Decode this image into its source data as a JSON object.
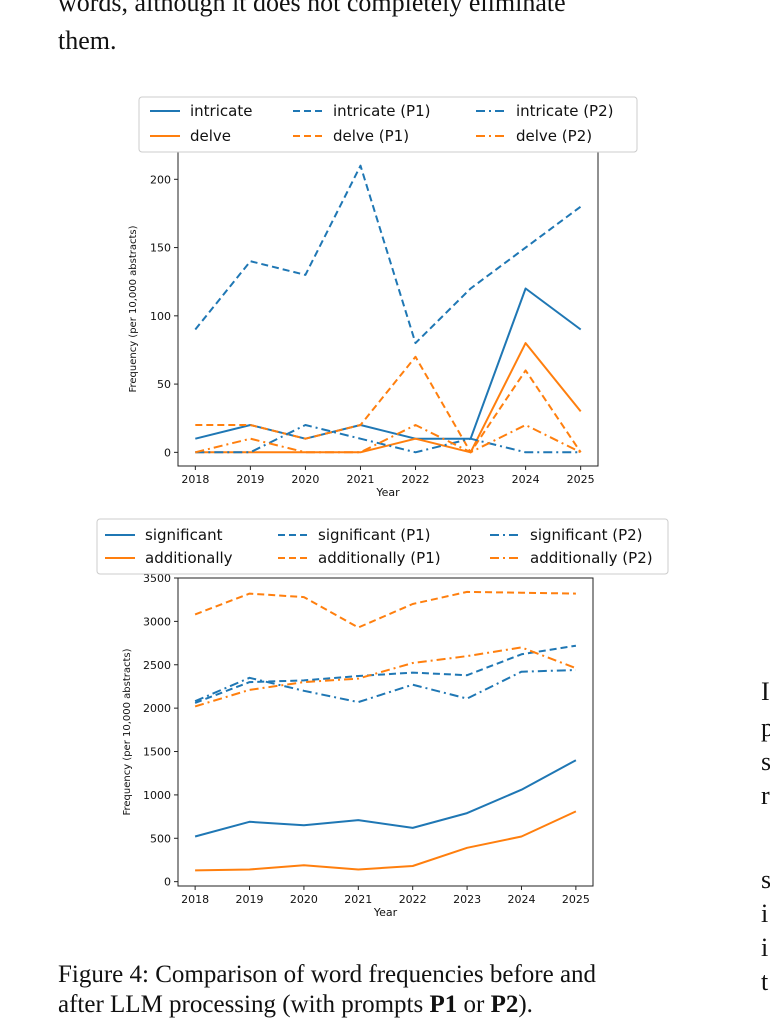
{
  "page": {
    "top_text_line1": "words, although it does not completely eliminate",
    "top_text_line2": "them.",
    "caption_before": "Figure 4: Comparison of word frequencies before and",
    "caption_line2_prefix": "after LLM processing (with prompts ",
    "caption_p1": "P1",
    "caption_or": " or ",
    "caption_p2": "P2",
    "caption_suffix": ").",
    "right_col": [
      "I",
      "p",
      "s",
      "r",
      "",
      "s",
      "i",
      "i",
      "t"
    ]
  },
  "colors": {
    "blue": "#1f77b4",
    "orange": "#ff7f0e"
  },
  "chart_data": [
    {
      "type": "line",
      "x": [
        2018,
        2019,
        2020,
        2021,
        2022,
        2023,
        2024,
        2025
      ],
      "ylabel": "Frequency (per 10,000 abstracts)",
      "xlabel": "Year",
      "ylim": [
        -10,
        220
      ],
      "yticks": [
        0,
        50,
        100,
        150,
        200
      ],
      "legend_position": "top",
      "series": [
        {
          "name": "intricate",
          "color": "blue",
          "style": "solid",
          "values": [
            10,
            20,
            10,
            20,
            10,
            10,
            120,
            90
          ]
        },
        {
          "name": "delve",
          "color": "orange",
          "style": "solid",
          "values": [
            0,
            0,
            0,
            0,
            10,
            0,
            80,
            30
          ]
        },
        {
          "name": "intricate (P1)",
          "color": "blue",
          "style": "dashed",
          "values": [
            90,
            140,
            130,
            210,
            80,
            120,
            150,
            180
          ]
        },
        {
          "name": "delve (P1)",
          "color": "orange",
          "style": "dashed",
          "values": [
            20,
            20,
            10,
            20,
            70,
            0,
            60,
            0
          ]
        },
        {
          "name": "intricate (P2)",
          "color": "blue",
          "style": "dashdot",
          "values": [
            0,
            0,
            20,
            10,
            0,
            10,
            0,
            0
          ]
        },
        {
          "name": "delve (P2)",
          "color": "orange",
          "style": "dashdot",
          "values": [
            0,
            10,
            0,
            0,
            20,
            0,
            20,
            0
          ]
        }
      ]
    },
    {
      "type": "line",
      "x": [
        2018,
        2019,
        2020,
        2021,
        2022,
        2023,
        2024,
        2025
      ],
      "ylabel": "Frequency (per 10,000 abstracts)",
      "xlabel": "Year",
      "ylim": [
        -50,
        3500
      ],
      "yticks": [
        0,
        500,
        1000,
        1500,
        2000,
        2500,
        3000,
        3500
      ],
      "legend_position": "top",
      "series": [
        {
          "name": "significant",
          "color": "blue",
          "style": "solid",
          "values": [
            520,
            690,
            650,
            710,
            620,
            790,
            1060,
            1400
          ]
        },
        {
          "name": "additionally",
          "color": "orange",
          "style": "solid",
          "values": [
            130,
            140,
            190,
            140,
            180,
            390,
            520,
            810
          ]
        },
        {
          "name": "significant (P1)",
          "color": "blue",
          "style": "dashed",
          "values": [
            2060,
            2300,
            2320,
            2370,
            2410,
            2380,
            2620,
            2720
          ]
        },
        {
          "name": "additionally (P1)",
          "color": "orange",
          "style": "dashed",
          "values": [
            3080,
            3320,
            3280,
            2930,
            3200,
            3340,
            3330,
            3320
          ]
        },
        {
          "name": "significant (P2)",
          "color": "blue",
          "style": "dashdot",
          "values": [
            2080,
            2350,
            2200,
            2070,
            2270,
            2110,
            2420,
            2440
          ]
        },
        {
          "name": "additionally (P2)",
          "color": "orange",
          "style": "dashdot",
          "values": [
            2020,
            2210,
            2300,
            2340,
            2520,
            2600,
            2700,
            2460
          ]
        }
      ]
    }
  ]
}
